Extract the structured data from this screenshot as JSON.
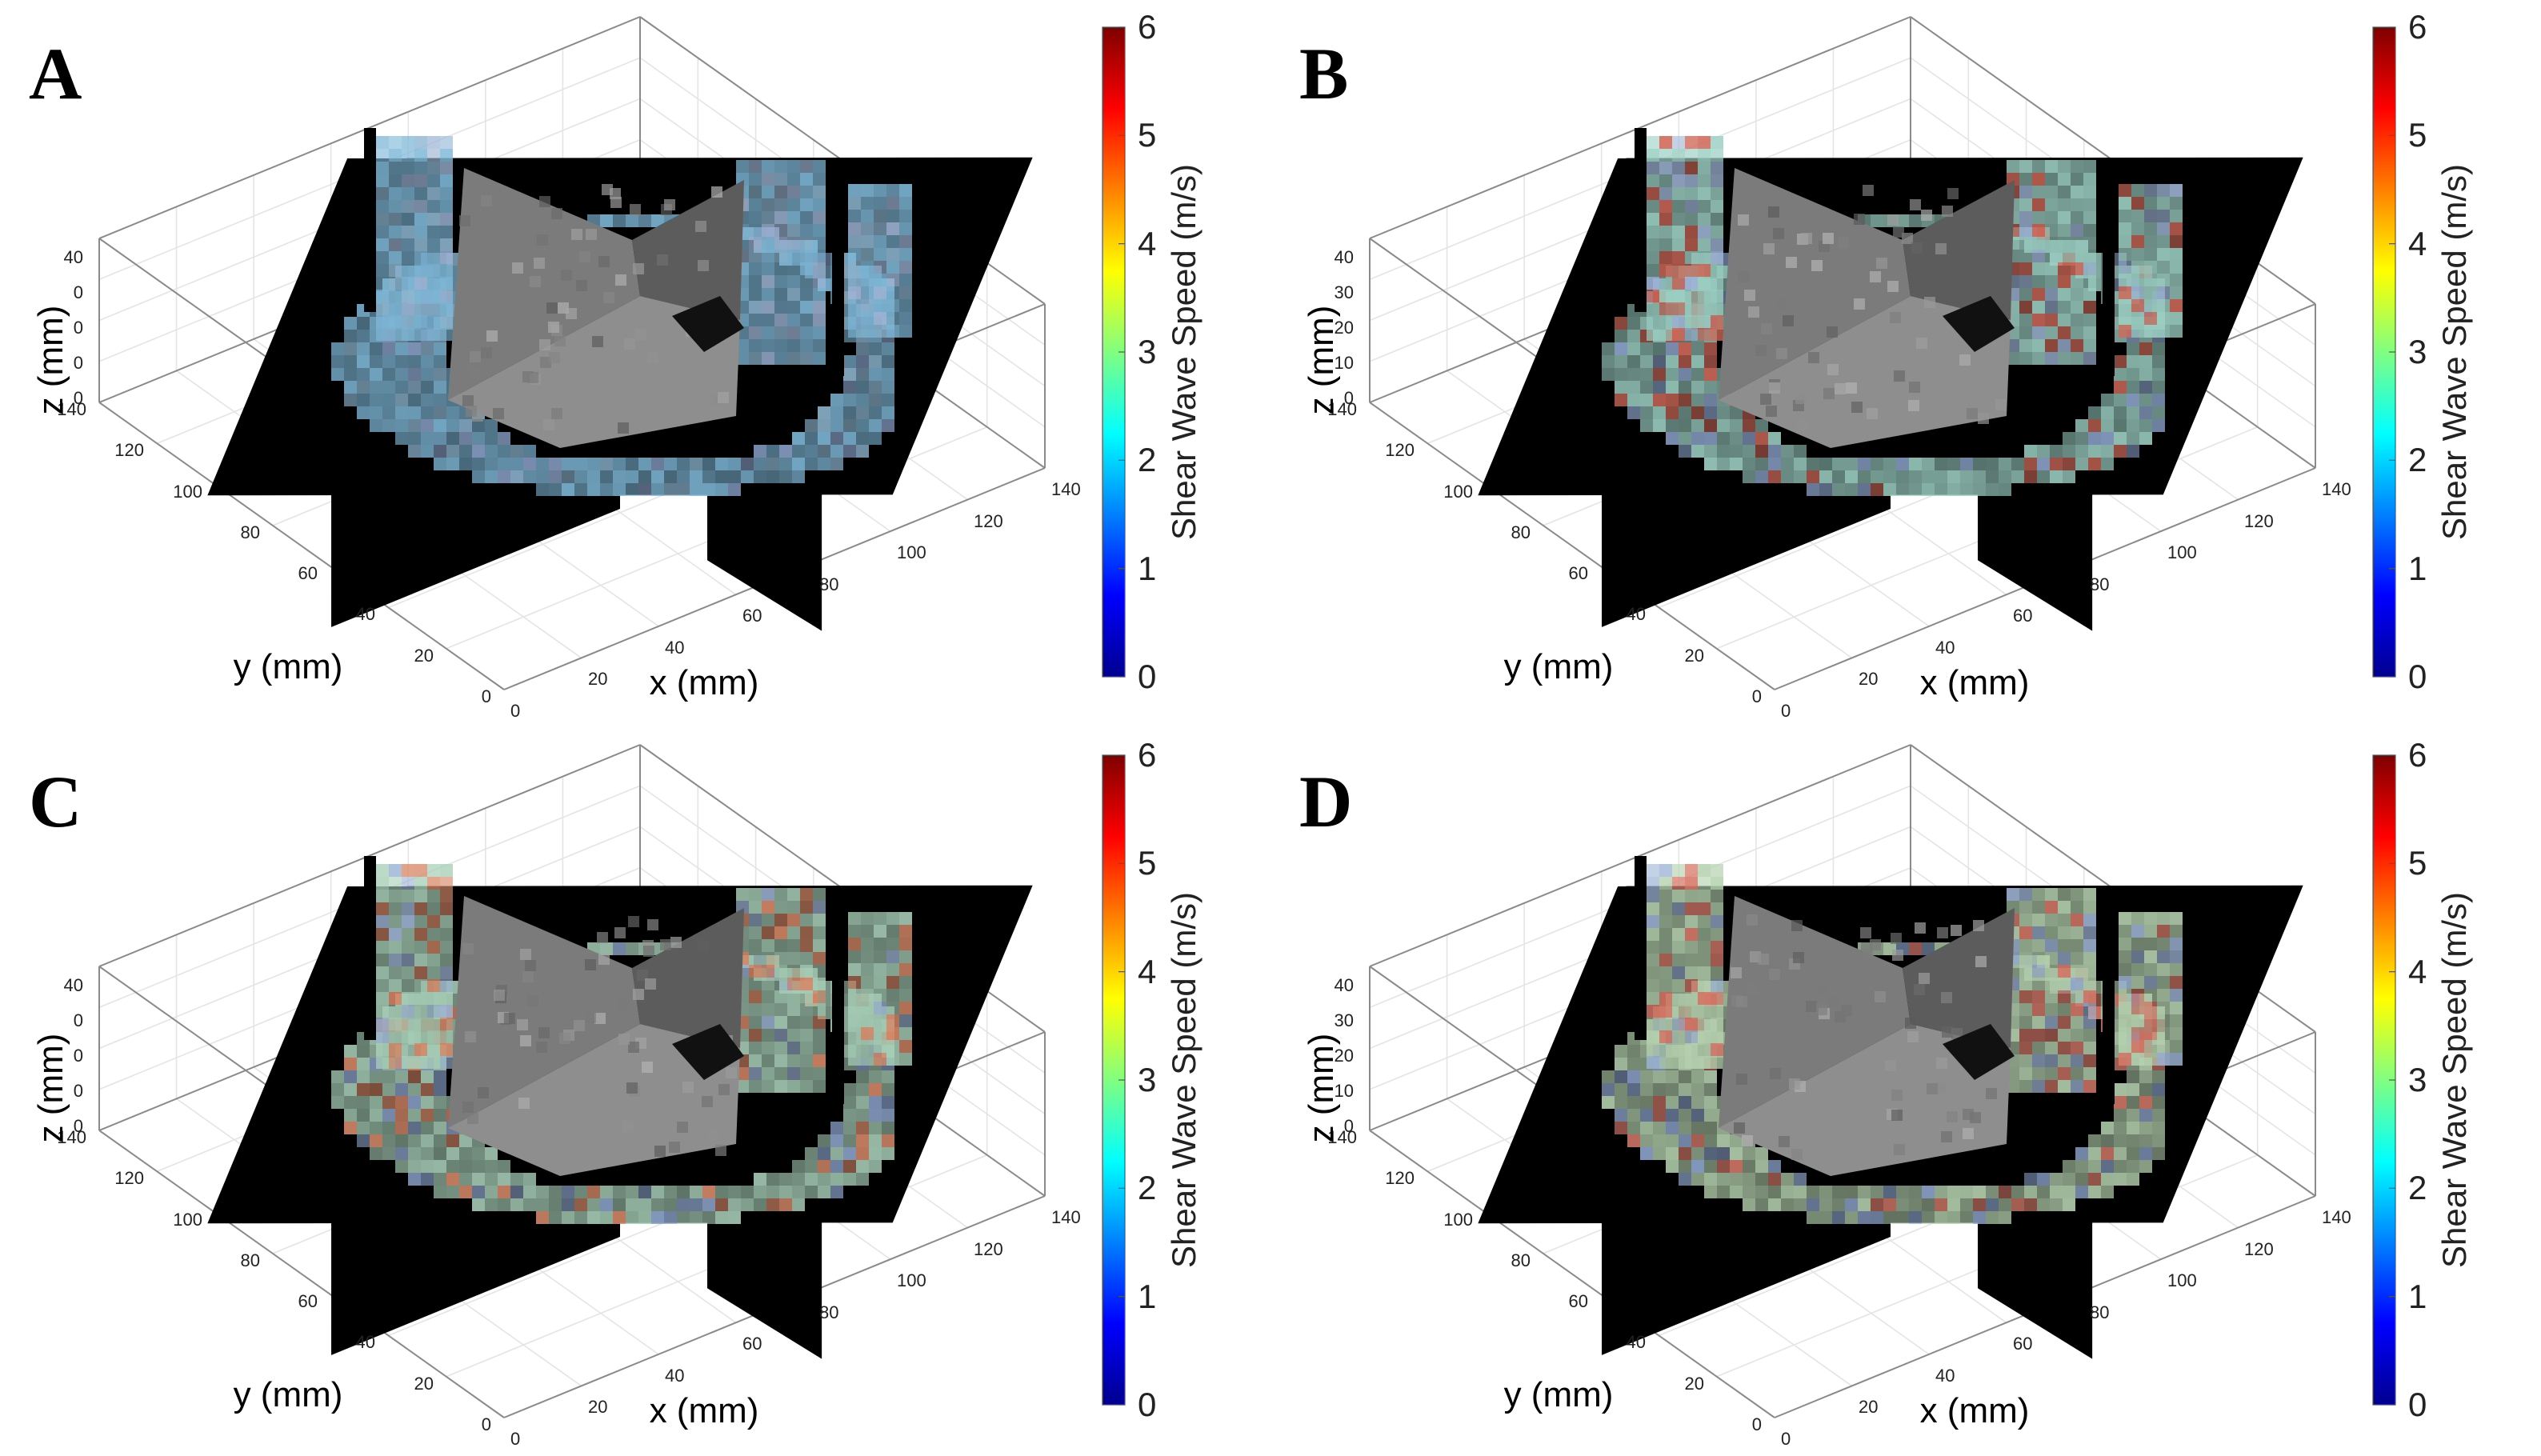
{
  "figure": {
    "colorbar": {
      "label": "Shear Wave Speed (m/s)",
      "ticks": [
        "0",
        "1",
        "2",
        "3",
        "4",
        "5",
        "6"
      ],
      "range": [
        0,
        6
      ],
      "colormap": [
        "#00008f",
        "#0000ff",
        "#0080ff",
        "#00ffff",
        "#80ff80",
        "#ffff00",
        "#ff8000",
        "#ff0000",
        "#800000"
      ]
    },
    "axes": {
      "xlabel": "x (mm)",
      "ylabel": "y (mm)",
      "zlabel": "z (mm)",
      "x_ticks": [
        "0",
        "20",
        "40",
        "60",
        "80",
        "100",
        "120",
        "140"
      ],
      "y_ticks": [
        "0",
        "20",
        "40",
        "60",
        "80",
        "100",
        "120",
        "140"
      ]
    },
    "panels": [
      {
        "letter": "A",
        "z_ticks": [
          "0",
          "0",
          "0",
          "0",
          "40"
        ],
        "tint": "#7fb8d8",
        "accent": "#8fb7d2"
      },
      {
        "letter": "B",
        "z_ticks": [
          "0",
          "10",
          "20",
          "30",
          "40"
        ],
        "tint": "#9dd0c4",
        "accent": "#d06a5a"
      },
      {
        "letter": "C",
        "z_ticks": [
          "0",
          "0",
          "0",
          "0",
          "40"
        ],
        "tint": "#a8cfb8",
        "accent": "#d88a6a"
      },
      {
        "letter": "D",
        "z_ticks": [
          "0",
          "10",
          "20",
          "30",
          "40"
        ],
        "tint": "#b6d2b0",
        "accent": "#d77a6a"
      }
    ]
  },
  "chart_data": [
    {
      "type": "heatmap",
      "title": "",
      "panel": "A",
      "xlabel": "x (mm)",
      "ylabel": "y (mm)",
      "zlabel": "z (mm)",
      "xlim": [
        0,
        140
      ],
      "ylim": [
        0,
        140
      ],
      "zlim": [
        0,
        40
      ],
      "clim": [
        0,
        6
      ],
      "colorbar_label": "Shear Wave Speed (m/s)",
      "grid": true
    },
    {
      "type": "heatmap",
      "title": "",
      "panel": "B",
      "xlabel": "x (mm)",
      "ylabel": "y (mm)",
      "zlabel": "z (mm)",
      "xlim": [
        0,
        140
      ],
      "ylim": [
        0,
        140
      ],
      "zlim": [
        0,
        40
      ],
      "clim": [
        0,
        6
      ],
      "colorbar_label": "Shear Wave Speed (m/s)",
      "grid": true
    },
    {
      "type": "heatmap",
      "title": "",
      "panel": "C",
      "xlabel": "x (mm)",
      "ylabel": "y (mm)",
      "zlabel": "z (mm)",
      "xlim": [
        0,
        140
      ],
      "ylim": [
        0,
        140
      ],
      "zlim": [
        0,
        40
      ],
      "clim": [
        0,
        6
      ],
      "colorbar_label": "Shear Wave Speed (m/s)",
      "grid": true
    },
    {
      "type": "heatmap",
      "title": "",
      "panel": "D",
      "xlabel": "x (mm)",
      "ylabel": "y (mm)",
      "zlabel": "z (mm)",
      "xlim": [
        0,
        140
      ],
      "ylim": [
        0,
        140
      ],
      "zlim": [
        0,
        40
      ],
      "clim": [
        0,
        6
      ],
      "colorbar_label": "Shear Wave Speed (m/s)",
      "grid": true
    }
  ]
}
